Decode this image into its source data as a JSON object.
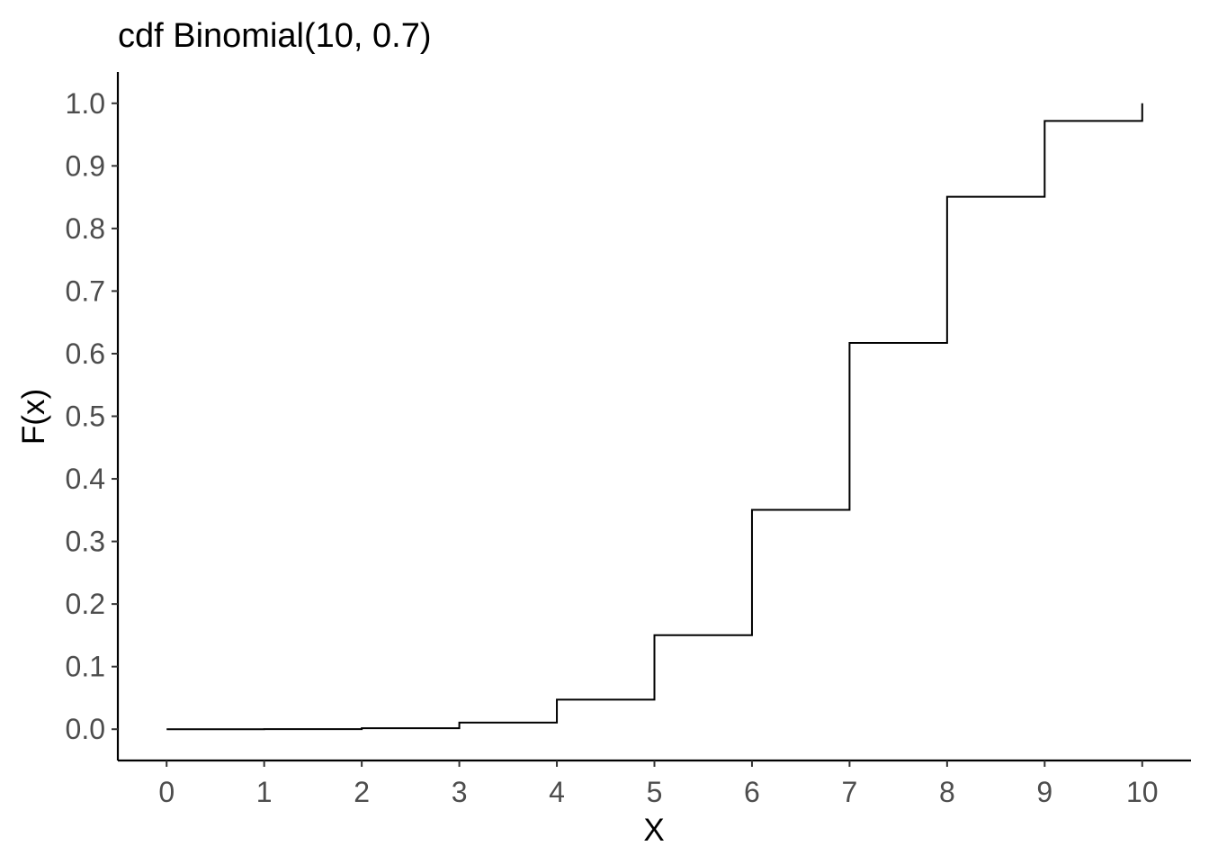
{
  "chart_data": {
    "type": "line",
    "style": "step",
    "title": "cdf Binomial(10, 0.7)",
    "xlabel": "X",
    "ylabel": "F(x)",
    "x": [
      0,
      1,
      2,
      3,
      4,
      5,
      6,
      7,
      8,
      9,
      10
    ],
    "values": [
      0.0,
      0.0001,
      0.0016,
      0.0106,
      0.0473,
      0.1503,
      0.3504,
      0.6172,
      0.8507,
      0.9718,
      1.0
    ],
    "xlim": [
      -0.5,
      10.5
    ],
    "ylim": [
      -0.05,
      1.05
    ],
    "x_ticks": [
      "0",
      "1",
      "2",
      "3",
      "4",
      "5",
      "6",
      "7",
      "8",
      "9",
      "10"
    ],
    "y_ticks": [
      "0.0",
      "0.1",
      "0.2",
      "0.3",
      "0.4",
      "0.5",
      "0.6",
      "0.7",
      "0.8",
      "0.9",
      "1.0"
    ],
    "grid": false,
    "legend": "none",
    "line_color": "#000000"
  }
}
